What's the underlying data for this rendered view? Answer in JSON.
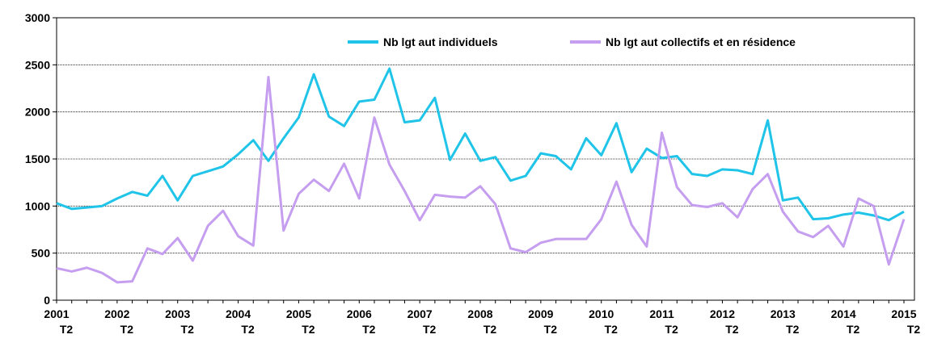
{
  "chart_data": {
    "type": "line",
    "categories": [
      "2001",
      null,
      null,
      null,
      "2002",
      null,
      null,
      null,
      "2003",
      null,
      null,
      null,
      "2004",
      null,
      null,
      null,
      "2005",
      null,
      null,
      null,
      "2006",
      null,
      null,
      null,
      "2007",
      null,
      null,
      null,
      "2008",
      null,
      null,
      null,
      "2009",
      null,
      null,
      null,
      "2010",
      null,
      null,
      null,
      "2011",
      null,
      null,
      null,
      "2012",
      null,
      null,
      null,
      "2013",
      null,
      null,
      null,
      "2014",
      null,
      null,
      null,
      "2015"
    ],
    "quarter_labels": [
      "T2",
      null,
      null,
      null,
      "T2",
      null,
      null,
      null,
      "T2",
      null,
      null,
      null,
      "T2",
      null,
      null,
      null,
      "T2",
      null,
      null,
      null,
      "T2",
      null,
      null,
      null,
      "T2",
      null,
      null,
      null,
      "T2",
      null,
      null,
      null,
      "T2",
      null,
      null,
      null,
      "T2",
      null,
      null,
      null,
      "T2",
      null,
      null,
      null,
      "T2",
      null,
      null,
      null,
      "T2",
      null,
      null,
      null,
      "T2",
      null,
      null,
      null,
      "T2"
    ],
    "series": [
      {
        "name": "Nb lgt aut individuels",
        "color": "#1fc4e8",
        "values": [
          1030,
          970,
          985,
          1000,
          1080,
          1150,
          1110,
          1320,
          1060,
          1320,
          1370,
          1420,
          1550,
          1700,
          1480,
          1720,
          1940,
          2400,
          1950,
          1850,
          2110,
          2130,
          2460,
          1890,
          1910,
          2150,
          1490,
          1770,
          1480,
          1520,
          1270,
          1320,
          1560,
          1530,
          1390,
          1720,
          1540,
          1880,
          1360,
          1610,
          1510,
          1530,
          1340,
          1320,
          1390,
          1380,
          1340,
          1910,
          1060,
          1090,
          860,
          870,
          910,
          930,
          900,
          850,
          940
        ]
      },
      {
        "name": "Nb lgt aut collectifs et en résidence",
        "color": "#c59ef0",
        "values": [
          340,
          305,
          345,
          290,
          190,
          200,
          550,
          490,
          660,
          420,
          790,
          950,
          680,
          580,
          2370,
          740,
          1130,
          1280,
          1160,
          1450,
          1080,
          1940,
          1440,
          1160,
          850,
          1120,
          1100,
          1090,
          1210,
          1020,
          550,
          510,
          610,
          650,
          650,
          650,
          860,
          1260,
          800,
          570,
          1780,
          1200,
          1010,
          990,
          1030,
          880,
          1180,
          1340,
          940,
          730,
          670,
          790,
          570,
          1080,
          1000,
          380,
          860
        ]
      }
    ],
    "ylim": [
      0,
      3000
    ],
    "yticks": [
      0,
      500,
      1000,
      1500,
      2000,
      2500,
      3000
    ],
    "grid": true,
    "legend": "top-right"
  }
}
